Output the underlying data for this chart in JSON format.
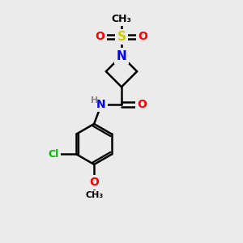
{
  "background_color": "#ebebeb",
  "atom_colors": {
    "C": "#000000",
    "N": "#0000ff",
    "O": "#ff0000",
    "S": "#cccc00",
    "Cl": "#00bb00",
    "H": "#888888"
  },
  "bond_color": "#000000",
  "bond_width": 1.8,
  "font_size": 10,
  "figsize": [
    3.0,
    3.0
  ],
  "dpi": 100
}
